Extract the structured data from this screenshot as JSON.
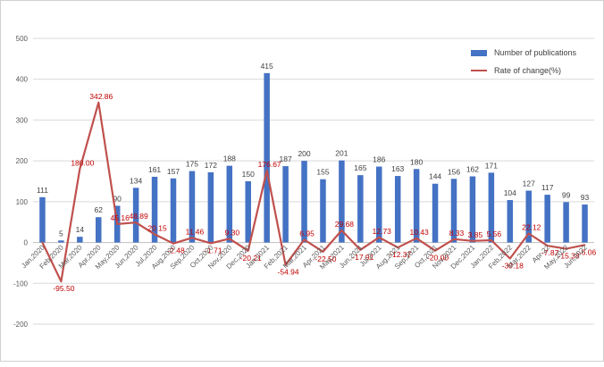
{
  "chart_data": {
    "type": "bar+line",
    "categories": [
      "Jan,2020",
      "Feb,2020",
      "Mar,2020",
      "Apr,2020",
      "May,2020",
      "Jun,2020",
      "Jul,2020",
      "Aug,2020",
      "Sep,2020",
      "Oct,2020",
      "Nov,2020",
      "Dec,2020",
      "Jan,2021",
      "Feb,2021",
      "Mar,2021",
      "Apr,2021",
      "May,2021",
      "Jun,2021",
      "Jul,2021",
      "Aug,2021",
      "Sep,2021",
      "Oct,2021",
      "Nov,2021",
      "Dec,2021",
      "Jan,2022",
      "Feb,2022",
      "Mar,2022",
      "Apr-22",
      "May,2022",
      "Jun,2022"
    ],
    "series": [
      {
        "name": "Number of publications",
        "kind": "bar",
        "color": "#4472C4",
        "values": [
          111,
          5,
          14,
          62,
          90,
          134,
          161,
          157,
          175,
          172,
          188,
          150,
          415,
          187,
          200,
          155,
          201,
          165,
          186,
          163,
          180,
          144,
          156,
          162,
          171,
          104,
          127,
          117,
          99,
          93
        ],
        "labels": [
          "111",
          "5",
          "14",
          "62",
          "90",
          "134",
          "161",
          "157",
          "175",
          "172",
          "188",
          "150",
          "415",
          "187",
          "200",
          "155",
          "201",
          "165",
          "186",
          "163",
          "180",
          "144",
          "156",
          "162",
          "171",
          "104",
          "127",
          "117",
          "99",
          "93"
        ]
      },
      {
        "name": "Rate of change(%)",
        "kind": "line",
        "color": "#C0504D",
        "values": [
          0,
          -95.5,
          180.0,
          342.86,
          45.16,
          48.89,
          20.15,
          -2.48,
          11.46,
          -1.71,
          9.3,
          -20.21,
          176.67,
          -54.94,
          6.95,
          -22.5,
          29.68,
          -17.91,
          12.73,
          -12.37,
          10.43,
          -20.0,
          8.33,
          3.85,
          5.56,
          -39.18,
          22.12,
          -7.87,
          -15.38,
          -6.06
        ],
        "labels": [
          "",
          "-95.50",
          "180.00",
          "342.86",
          "45.16",
          "48.89",
          "20.15",
          "-2.48",
          "11.46",
          "-1.71",
          "9.30",
          "-20.21",
          "176.67",
          "-54.94",
          "6.95",
          "-22.50",
          "29.68",
          "-17.91",
          "12.73",
          "-12.37",
          "10.43",
          "-20.00",
          "8.33",
          "3.85",
          "5.56",
          "-39.18",
          "22.12",
          "-7.87",
          "-15.38",
          "-6.06"
        ]
      }
    ],
    "yticks": [
      "500",
      "400",
      "300",
      "200",
      "100",
      "0",
      "-100",
      "-200"
    ],
    "ylim": [
      -200,
      500
    ],
    "grid": true,
    "legend_position": "top-right"
  }
}
